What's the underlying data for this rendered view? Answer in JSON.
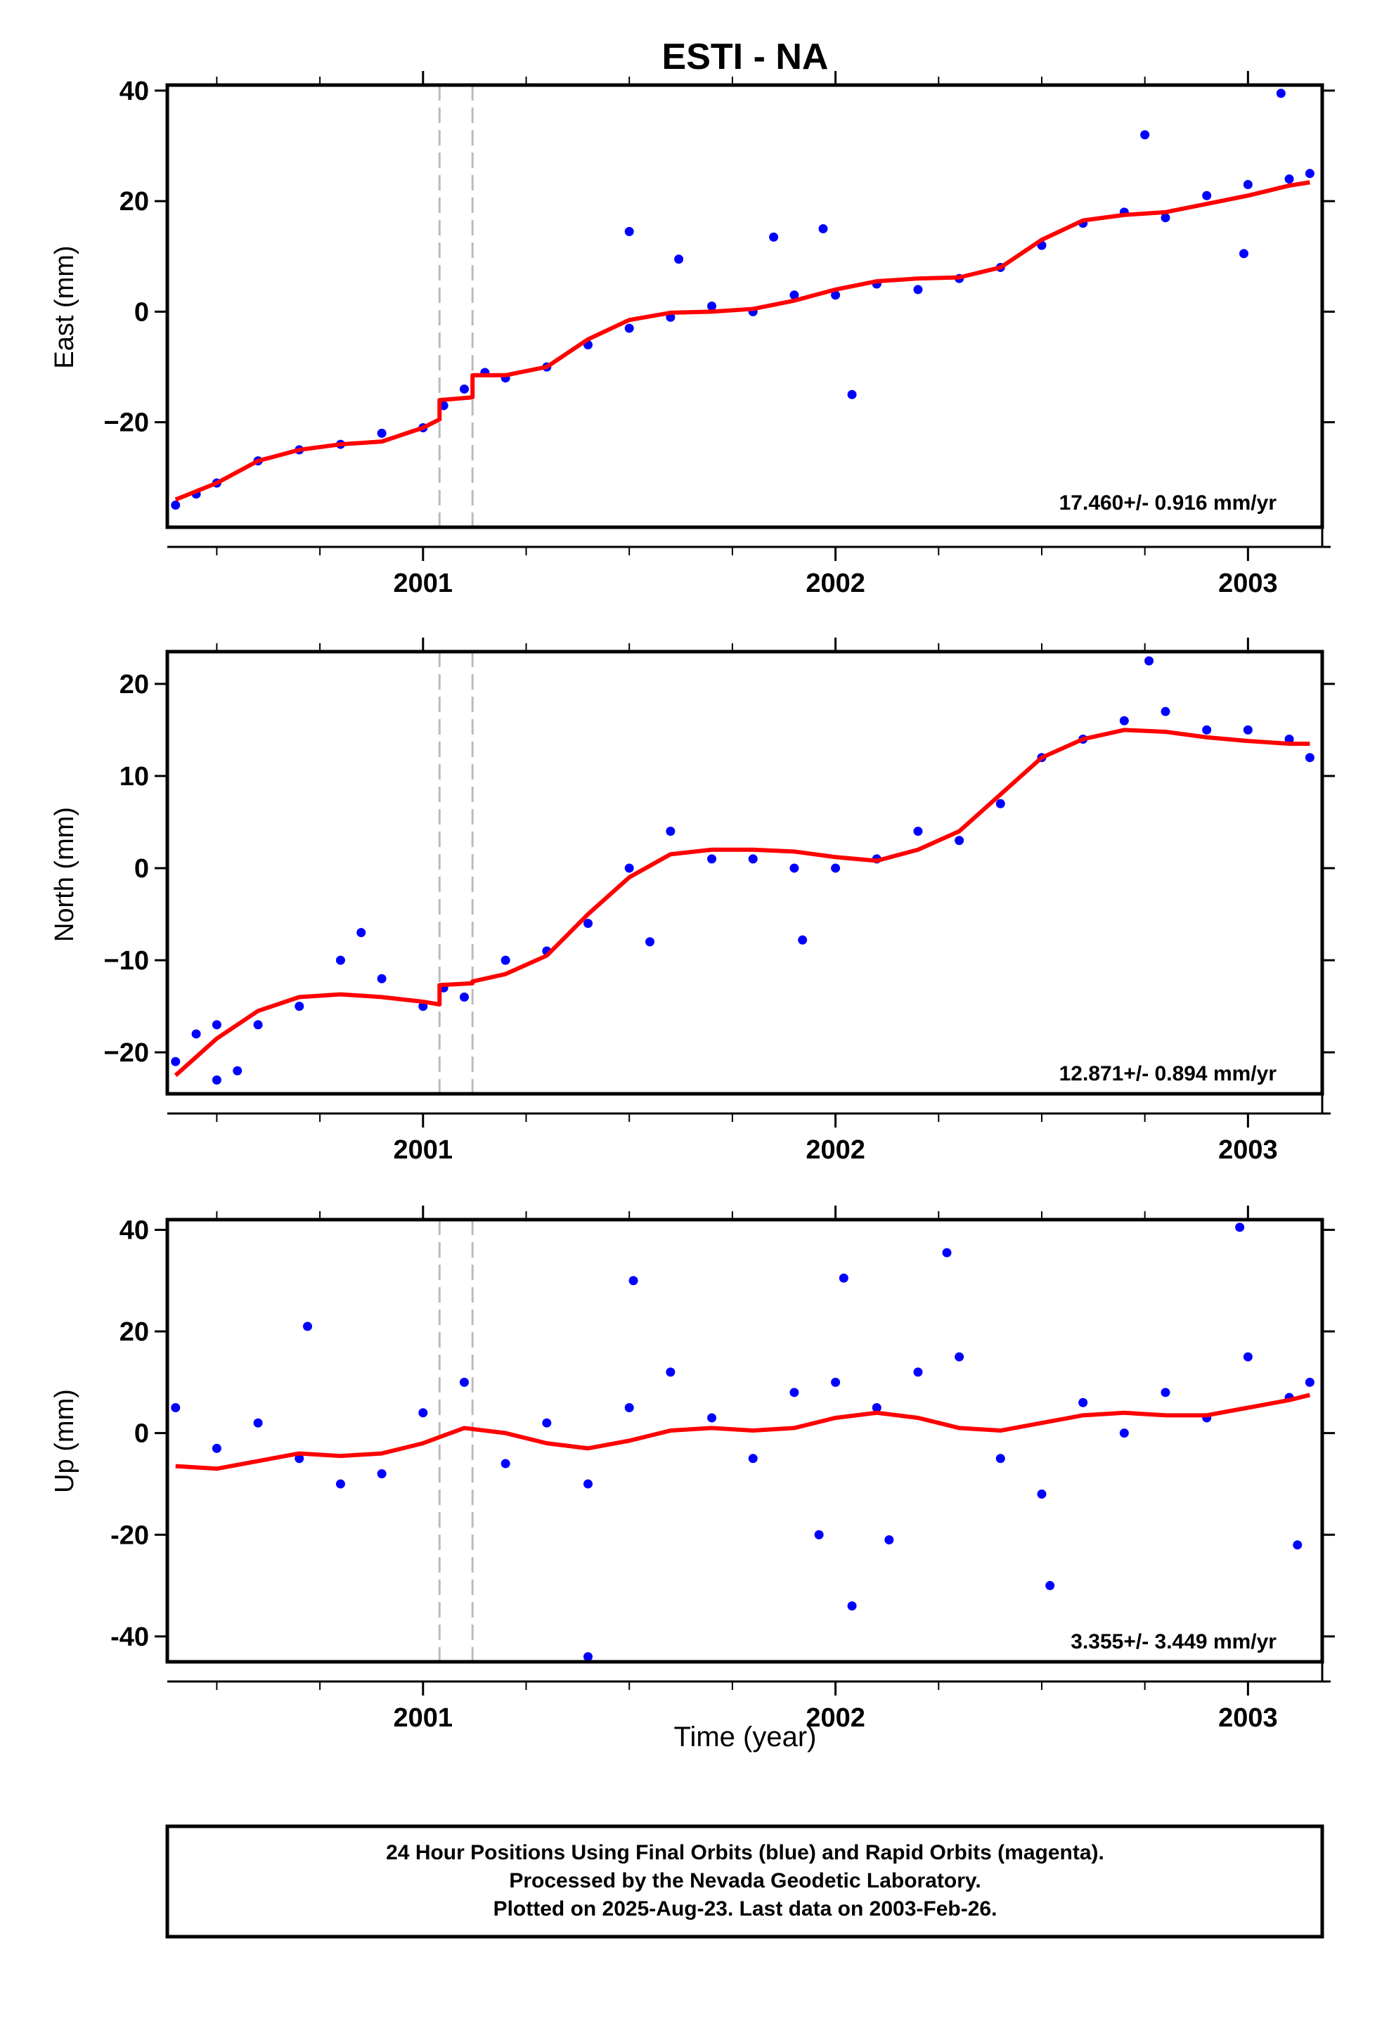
{
  "title": "ESTI - NA",
  "colors": {
    "points": "#0000ff",
    "fit": "#ff0000",
    "break": "#bbbbbb",
    "frame": "#000000"
  },
  "footer": {
    "line1": "24 Hour Positions Using Final Orbits (blue) and Rapid Orbits (magenta).",
    "line2": "Processed by the Nevada Geodetic Laboratory.",
    "line3": "Plotted on 2025-Aug-23. Last data on 2003-Feb-26."
  },
  "chart_data": [
    {
      "type": "scatter",
      "ylabel": "East (mm)",
      "rate_label": "17.460+/- 0.916 mm/yr",
      "xlim": [
        2000.38,
        2003.18
      ],
      "ylim": [
        -39,
        41
      ],
      "xticks": [
        2001,
        2002,
        2003
      ],
      "yticks": [
        -20,
        0,
        20,
        40
      ],
      "ytick_labels": [
        "−20",
        "0",
        "20",
        "40"
      ],
      "breaks": [
        2001.04,
        2001.12
      ],
      "fit": {
        "x": [
          2000.4,
          2000.5,
          2000.6,
          2000.7,
          2000.8,
          2000.9,
          2001.0,
          2001.04,
          2001.04,
          2001.12,
          2001.12,
          2001.2,
          2001.3,
          2001.4,
          2001.5,
          2001.6,
          2001.7,
          2001.8,
          2001.9,
          2002.0,
          2002.1,
          2002.2,
          2002.3,
          2002.4,
          2002.5,
          2002.6,
          2002.7,
          2002.8,
          2002.9,
          2003.0,
          2003.1,
          2003.15
        ],
        "y": [
          -34,
          -31,
          -27,
          -25,
          -24,
          -23.5,
          -21,
          -19.5,
          -16,
          -15.5,
          -11.5,
          -11.5,
          -10,
          -5,
          -1.5,
          -0.2,
          0,
          0.5,
          2,
          4,
          5.5,
          6,
          6.2,
          8,
          13,
          16.5,
          17.5,
          18,
          19.5,
          21,
          22.8,
          23.4
        ]
      },
      "series": [
        {
          "name": "",
          "x": [
            2000.4,
            2000.45,
            2000.5,
            2000.6,
            2000.7,
            2000.8,
            2000.9,
            2001.0,
            2001.05,
            2001.1,
            2001.15,
            2001.2,
            2001.3,
            2001.4,
            2001.5,
            2001.6,
            2001.7,
            2001.8,
            2001.9,
            2002.0,
            2002.1,
            2002.2,
            2002.3,
            2002.4,
            2002.5,
            2002.6,
            2002.7,
            2002.8,
            2002.9,
            2003.0,
            2003.1,
            2003.15,
            2001.5,
            2001.62,
            2001.85,
            2001.97,
            2002.04,
            2002.75,
            2003.08,
            2002.99
          ],
          "y": [
            -35,
            -33,
            -31,
            -27,
            -25,
            -24,
            -22,
            -21,
            -17,
            -14,
            -11,
            -12,
            -10,
            -6,
            -3,
            -1,
            1,
            0,
            3,
            3,
            5,
            4,
            6,
            8,
            12,
            16,
            18,
            17,
            21,
            23,
            24,
            25,
            14.5,
            9.5,
            13.5,
            15,
            -15,
            32,
            39.5,
            10.5
          ]
        }
      ]
    },
    {
      "type": "scatter",
      "ylabel": "North (mm)",
      "rate_label": "12.871+/- 0.894 mm/yr",
      "xlim": [
        2000.38,
        2003.18
      ],
      "ylim": [
        -24.5,
        23.5
      ],
      "xticks": [
        2001,
        2002,
        2003
      ],
      "yticks": [
        -20,
        -10,
        0,
        10,
        20
      ],
      "ytick_labels": [
        "−20",
        "−10",
        "0",
        "10",
        "20"
      ],
      "breaks": [
        2001.04,
        2001.12
      ],
      "fit": {
        "x": [
          2000.4,
          2000.5,
          2000.6,
          2000.7,
          2000.8,
          2000.9,
          2001.0,
          2001.04,
          2001.04,
          2001.12,
          2001.12,
          2001.2,
          2001.3,
          2001.4,
          2001.5,
          2001.6,
          2001.7,
          2001.8,
          2001.9,
          2002.0,
          2002.1,
          2002.2,
          2002.3,
          2002.4,
          2002.5,
          2002.6,
          2002.7,
          2002.8,
          2002.9,
          2003.0,
          2003.1,
          2003.15
        ],
        "y": [
          -22.5,
          -18.5,
          -15.5,
          -14,
          -13.7,
          -14,
          -14.5,
          -14.8,
          -12.7,
          -12.5,
          -12.3,
          -11.5,
          -9.5,
          -5,
          -1,
          1.5,
          2,
          2,
          1.8,
          1.2,
          0.8,
          2,
          4,
          8,
          12,
          14,
          15,
          14.8,
          14.2,
          13.8,
          13.5,
          13.5
        ]
      },
      "series": [
        {
          "name": "",
          "x": [
            2000.4,
            2000.45,
            2000.5,
            2000.6,
            2000.7,
            2000.8,
            2000.85,
            2000.9,
            2001.0,
            2001.05,
            2001.1,
            2001.2,
            2001.3,
            2001.4,
            2001.5,
            2001.6,
            2001.7,
            2001.8,
            2001.9,
            2002.0,
            2002.1,
            2002.2,
            2002.3,
            2002.4,
            2002.5,
            2002.6,
            2002.7,
            2002.8,
            2002.9,
            2003.0,
            2003.1,
            2003.15,
            2000.5,
            2000.55,
            2001.55,
            2001.92,
            2002.76
          ],
          "y": [
            -21,
            -18,
            -17,
            -17,
            -15,
            -10,
            -7,
            -12,
            -15,
            -13,
            -14,
            -10,
            -9,
            -6,
            0,
            4,
            1,
            1,
            0,
            0,
            1,
            4,
            3,
            7,
            12,
            14,
            16,
            17,
            15,
            15,
            14,
            12,
            -23,
            -22,
            -8,
            -7.8,
            22.5
          ]
        }
      ]
    },
    {
      "type": "scatter",
      "ylabel": "Up (mm)",
      "xlabel": "Time (year)",
      "rate_label": "3.355+/- 3.449 mm/yr",
      "xlim": [
        2000.38,
        2003.18
      ],
      "ylim": [
        -45,
        42
      ],
      "xticks": [
        2001,
        2002,
        2003
      ],
      "yticks": [
        -40,
        -20,
        0,
        20,
        40
      ],
      "ytick_labels": [
        "-40",
        "-20",
        "0",
        "20",
        "40"
      ],
      "breaks": [
        2001.04,
        2001.12
      ],
      "fit": {
        "x": [
          2000.4,
          2000.5,
          2000.6,
          2000.7,
          2000.8,
          2000.9,
          2001.0,
          2001.1,
          2001.2,
          2001.3,
          2001.4,
          2001.5,
          2001.6,
          2001.7,
          2001.8,
          2001.9,
          2002.0,
          2002.1,
          2002.2,
          2002.3,
          2002.4,
          2002.5,
          2002.6,
          2002.7,
          2002.8,
          2002.9,
          2003.0,
          2003.1,
          2003.15
        ],
        "y": [
          -6.5,
          -7,
          -5.5,
          -4,
          -4.5,
          -4,
          -2,
          1,
          0,
          -2,
          -3,
          -1.5,
          0.5,
          1,
          0.5,
          1,
          3,
          4,
          3,
          1,
          0.5,
          2,
          3.5,
          4,
          3.5,
          3.5,
          5,
          6.5,
          7.5
        ]
      },
      "series": [
        {
          "name": "",
          "x": [
            2000.4,
            2000.5,
            2000.6,
            2000.7,
            2000.8,
            2000.9,
            2001.0,
            2001.1,
            2001.2,
            2001.3,
            2001.4,
            2001.5,
            2001.6,
            2001.7,
            2001.8,
            2001.9,
            2002.0,
            2002.1,
            2002.2,
            2002.3,
            2002.4,
            2002.5,
            2002.6,
            2002.7,
            2002.8,
            2002.9,
            2003.0,
            2003.1,
            2003.15,
            2001.51,
            2002.27,
            2002.02,
            2002.98,
            2001.4,
            2002.04,
            2002.52,
            2003.12,
            2002.13,
            2001.96,
            2000.72
          ],
          "y": [
            5,
            -3,
            2,
            -5,
            -10,
            -8,
            4,
            10,
            -6,
            2,
            -10,
            5,
            12,
            3,
            -5,
            8,
            10,
            5,
            12,
            15,
            -5,
            -12,
            6,
            0,
            8,
            3,
            15,
            7,
            10,
            30,
            35.5,
            30.5,
            40.5,
            -44,
            -34,
            -30,
            -22,
            -21,
            -20,
            21
          ]
        }
      ]
    }
  ]
}
